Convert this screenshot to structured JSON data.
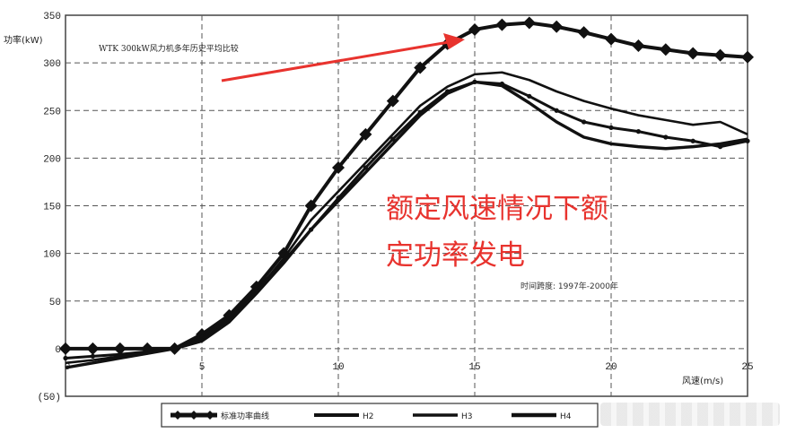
{
  "chart_data": {
    "type": "line",
    "title": "WTK 300kW风力机多年历史平均比较",
    "ylabel": "功率(kW)",
    "xlabel": "风速(m/s)",
    "xlim": [
      0,
      25
    ],
    "ylim": [
      -50,
      350
    ],
    "xticks": [
      "0",
      "5",
      "10",
      "15",
      "20",
      "25"
    ],
    "yticks": [
      "(50)",
      "0",
      "50",
      "100",
      "150",
      "200",
      "250",
      "300",
      "350"
    ],
    "grid": true,
    "legend_position": "bottom",
    "colors": {
      "series": "#111111",
      "annotation": "#e8332e",
      "grid": "#555555"
    },
    "series": [
      {
        "name": "标准功率曲线",
        "marker": "diamond",
        "x": [
          0,
          1,
          2,
          3,
          4,
          5,
          6,
          7,
          8,
          9,
          10,
          11,
          12,
          13,
          14,
          15,
          16,
          17,
          18,
          19,
          20,
          21,
          22,
          23,
          24,
          25
        ],
        "y": [
          0,
          0,
          0,
          0,
          0,
          15,
          35,
          65,
          100,
          150,
          190,
          225,
          260,
          295,
          320,
          335,
          340,
          342,
          338,
          332,
          325,
          318,
          314,
          310,
          308,
          306
        ]
      },
      {
        "name": "H2",
        "marker": "circle",
        "x": [
          0,
          1,
          2,
          3,
          4,
          5,
          6,
          7,
          8,
          9,
          10,
          11,
          12,
          13,
          14,
          15,
          16,
          17,
          18,
          19,
          20,
          21,
          22,
          23,
          24,
          25
        ],
        "y": [
          -10,
          -8,
          -6,
          -3,
          0,
          12,
          32,
          62,
          92,
          125,
          158,
          190,
          220,
          248,
          270,
          280,
          278,
          265,
          250,
          238,
          232,
          228,
          222,
          218,
          212,
          218
        ]
      },
      {
        "name": "H3",
        "marker": "none",
        "x": [
          0,
          1,
          2,
          3,
          4,
          5,
          6,
          7,
          8,
          9,
          10,
          11,
          12,
          13,
          14,
          15,
          16,
          17,
          18,
          19,
          20,
          21,
          22,
          23,
          24,
          25
        ],
        "y": [
          -15,
          -12,
          -8,
          -4,
          0,
          10,
          30,
          60,
          95,
          135,
          165,
          195,
          225,
          255,
          275,
          288,
          290,
          282,
          270,
          260,
          252,
          245,
          240,
          235,
          238,
          225
        ]
      },
      {
        "name": "H4",
        "marker": "none",
        "x": [
          0,
          1,
          2,
          3,
          4,
          5,
          6,
          7,
          8,
          9,
          10,
          11,
          12,
          13,
          14,
          15,
          16,
          17,
          18,
          19,
          20,
          21,
          22,
          23,
          24,
          25
        ],
        "y": [
          -20,
          -15,
          -10,
          -5,
          0,
          8,
          28,
          58,
          90,
          125,
          155,
          185,
          215,
          245,
          268,
          280,
          276,
          258,
          238,
          222,
          215,
          212,
          210,
          212,
          215,
          220
        ]
      }
    ],
    "annotation": [
      "额定风速情况下额",
      "定功率发电"
    ],
    "note": "时间跨度: 1997年-2000年"
  }
}
